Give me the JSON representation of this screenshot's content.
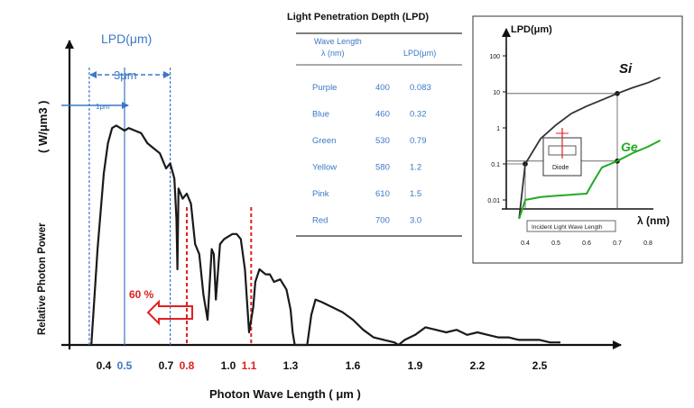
{
  "colors": {
    "line": "#1a1a1a",
    "accent_blue": "#3a78c8",
    "marker_red": "#e02020",
    "ge_green": "#22aa22"
  },
  "chart_data": [
    {
      "type": "line",
      "title": "",
      "xlabel": "Photon Wave Length ( μm )",
      "ylabel": "Relative Photon Power",
      "ylabel_unit": "( W/μm3 )",
      "xlim": [
        0.25,
        2.65
      ],
      "ylim": [
        0,
        1.0
      ],
      "x_ticks": [
        {
          "label": "0.4",
          "value": 0.4,
          "color": "black"
        },
        {
          "label": "0.5",
          "value": 0.5,
          "color": "blue"
        },
        {
          "label": "0.7",
          "value": 0.7,
          "color": "black"
        },
        {
          "label": "0.8",
          "value": 0.8,
          "color": "red"
        },
        {
          "label": "1.0",
          "value": 1.0,
          "color": "black"
        },
        {
          "label": "1.1",
          "value": 1.1,
          "color": "red"
        },
        {
          "label": "1.3",
          "value": 1.3,
          "color": "black"
        },
        {
          "label": "1.6",
          "value": 1.6,
          "color": "black"
        },
        {
          "label": "1.9",
          "value": 1.9,
          "color": "black"
        },
        {
          "label": "2.2",
          "value": 2.2,
          "color": "black"
        },
        {
          "label": "2.5",
          "value": 2.5,
          "color": "black"
        }
      ],
      "series": [
        {
          "x": [
            0.34,
            0.37,
            0.4,
            0.42,
            0.44,
            0.46,
            0.48,
            0.5,
            0.52,
            0.55,
            0.58,
            0.61,
            0.64,
            0.67,
            0.7,
            0.72,
            0.74,
            0.75,
            0.755,
            0.76,
            0.78,
            0.8,
            0.82,
            0.84,
            0.86,
            0.88,
            0.9,
            0.92,
            0.93,
            0.94,
            0.96,
            0.98,
            1.0,
            1.02,
            1.04,
            1.06,
            1.08,
            1.1,
            1.12,
            1.13,
            1.15,
            1.18,
            1.2,
            1.22,
            1.25,
            1.28,
            1.3,
            1.31,
            1.32,
            1.34,
            1.36,
            1.38,
            1.4,
            1.42,
            1.45,
            1.5,
            1.55,
            1.6,
            1.65,
            1.7,
            1.75,
            1.8,
            1.82,
            1.85,
            1.9,
            1.95,
            2.0,
            2.05,
            2.1,
            2.15,
            2.2,
            2.25,
            2.3,
            2.35,
            2.4,
            2.45,
            2.5,
            2.55,
            2.6
          ],
          "y": [
            0.0,
            0.38,
            0.68,
            0.8,
            0.86,
            0.87,
            0.86,
            0.85,
            0.86,
            0.85,
            0.84,
            0.8,
            0.78,
            0.76,
            0.7,
            0.72,
            0.66,
            0.5,
            0.3,
            0.62,
            0.58,
            0.6,
            0.56,
            0.4,
            0.36,
            0.2,
            0.1,
            0.38,
            0.36,
            0.18,
            0.4,
            0.42,
            0.43,
            0.44,
            0.44,
            0.42,
            0.3,
            0.05,
            0.15,
            0.25,
            0.3,
            0.28,
            0.28,
            0.25,
            0.26,
            0.22,
            0.14,
            0.05,
            0.0,
            0.0,
            0.0,
            0.0,
            0.12,
            0.18,
            0.17,
            0.15,
            0.13,
            0.1,
            0.06,
            0.03,
            0.02,
            0.01,
            0.0,
            0.02,
            0.04,
            0.07,
            0.06,
            0.05,
            0.06,
            0.04,
            0.05,
            0.04,
            0.03,
            0.03,
            0.02,
            0.02,
            0.02,
            0.01,
            0.01
          ]
        }
      ],
      "annotations": {
        "lpd_label": "LPD(μm)",
        "span_3um": "3μm",
        "span_1um": "1μm",
        "pct_60": "60 %"
      }
    },
    {
      "type": "table",
      "title": "Light Penetration Depth (LPD)",
      "columns": [
        "Wave Length λ(nm)",
        "LPD(μm)"
      ],
      "header_line1": "Wave Length",
      "header_line2": "λ (nm)",
      "header_col3": "LPD(μm)",
      "rows": [
        {
          "color": "Purple",
          "nm": "400",
          "lpd": "0.083"
        },
        {
          "color": "Blue",
          "nm": "460",
          "lpd": "0.32"
        },
        {
          "color": "Green",
          "nm": "530",
          "lpd": "0.79"
        },
        {
          "color": "Yellow",
          "nm": "580",
          "lpd": "1.2"
        },
        {
          "color": "Pink",
          "nm": "610",
          "lpd": "1.5"
        },
        {
          "color": "Red",
          "nm": "700",
          "lpd": "3.0"
        }
      ]
    },
    {
      "type": "line",
      "title": "",
      "ylabel": "LPD(μm)",
      "xlabel": "λ (nm)",
      "x_caption": "Incident Light Wave Length",
      "yscale": "log",
      "xlim": [
        0.35,
        0.85
      ],
      "ylim": [
        0.001,
        100
      ],
      "y_ticks": [
        "100",
        "10",
        "1",
        "0.1",
        "0.01"
      ],
      "x_ticks": [
        "0.4",
        "0.5",
        "0.6",
        "0.7",
        "0.8"
      ],
      "inset_box_label": "Diode",
      "series": [
        {
          "name": "Si",
          "x": [
            0.38,
            0.4,
            0.45,
            0.5,
            0.55,
            0.6,
            0.65,
            0.7,
            0.75,
            0.8,
            0.84
          ],
          "y": [
            0.003,
            0.1,
            0.5,
            1.2,
            2.5,
            4,
            6,
            9,
            13,
            18,
            25
          ]
        },
        {
          "name": "Ge",
          "x": [
            0.38,
            0.4,
            0.45,
            0.5,
            0.55,
            0.6,
            0.62,
            0.65,
            0.7,
            0.75,
            0.8,
            0.84
          ],
          "y": [
            0.003,
            0.01,
            0.012,
            0.013,
            0.014,
            0.015,
            0.03,
            0.08,
            0.12,
            0.2,
            0.3,
            0.45
          ]
        }
      ]
    }
  ]
}
